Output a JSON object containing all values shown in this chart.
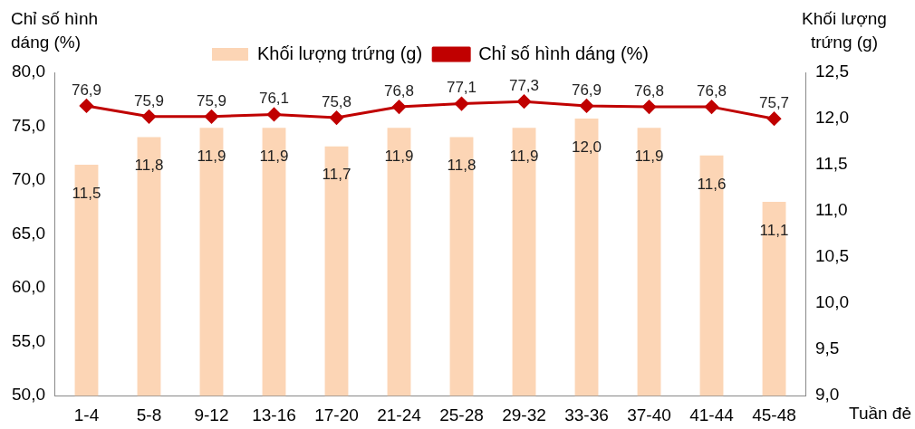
{
  "chart_data": {
    "type": "bar",
    "ylabel": "Chỉ số hình dáng (%)",
    "y2label": "Khối lượng trứng (g)",
    "xlabel": "Tuần đẻ",
    "categories": [
      "1-4",
      "5-8",
      "9-12",
      "13-16",
      "17-20",
      "21-24",
      "25-28",
      "29-32",
      "33-36",
      "37-40",
      "41-44",
      "45-48"
    ],
    "series": [
      {
        "name": "Khối lượng trứng (g)",
        "axis": "y2",
        "color": "#fcd5b5",
        "values": [
          11.5,
          11.8,
          11.9,
          11.9,
          11.7,
          11.9,
          11.8,
          11.9,
          12.0,
          11.9,
          11.6,
          11.1
        ],
        "value_labels": [
          "11,5",
          "11,8",
          "11,9",
          "11,9",
          "11,7",
          "11,9",
          "11,8",
          "11,9",
          "12,0",
          "11,9",
          "11,6",
          "11,1"
        ]
      },
      {
        "name": "Chỉ số hình dáng (%)",
        "type": "line",
        "axis": "y",
        "color": "#c00000",
        "marker": "diamond",
        "line_style": "solid",
        "values": [
          76.9,
          75.9,
          75.9,
          76.1,
          75.8,
          76.8,
          77.1,
          77.3,
          76.9,
          76.8,
          76.8,
          75.7
        ],
        "value_labels": [
          "76,9",
          "75,9",
          "75,9",
          "76,1",
          "75,8",
          "76,8",
          "77,1",
          "77,3",
          "76,9",
          "76,8",
          "76,8",
          "75,7"
        ]
      }
    ],
    "ylim": [
      50,
      80
    ],
    "yticks": [
      {
        "value": 50,
        "label": "50,0"
      },
      {
        "value": 55,
        "label": "55,0"
      },
      {
        "value": 60,
        "label": "60,0"
      },
      {
        "value": 65,
        "label": "65,0"
      },
      {
        "value": 70,
        "label": "70,0"
      },
      {
        "value": 75,
        "label": "75,0"
      },
      {
        "value": 80,
        "label": "80,0"
      }
    ],
    "y2lim": [
      9,
      12.5
    ],
    "y2ticks": [
      {
        "value": 9,
        "label": "9,0"
      },
      {
        "value": 9.5,
        "label": "9,5"
      },
      {
        "value": 10,
        "label": "10,0"
      },
      {
        "value": 10.5,
        "label": "10,5"
      },
      {
        "value": 11,
        "label": "11,0"
      },
      {
        "value": 11.5,
        "label": "11,5"
      },
      {
        "value": 12,
        "label": "12,0"
      },
      {
        "value": 12.5,
        "label": "12,5"
      }
    ],
    "grid": false,
    "legend": "top"
  }
}
